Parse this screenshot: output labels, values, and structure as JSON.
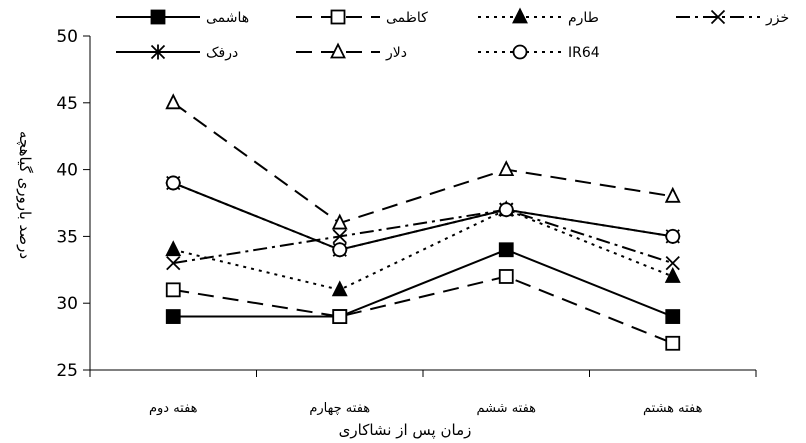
{
  "chart_data": {
    "type": "line",
    "xlabel": "زمان پس از نشاکاری",
    "ylabel": "درصد باروری گیاهچه",
    "categories": [
      "هفته دوم",
      "هفته چهارم",
      "هفته ششم",
      "هفته هشتم"
    ],
    "ylim": [
      25,
      50
    ],
    "yticks": [
      25,
      30,
      35,
      40,
      45,
      50
    ],
    "grid": false,
    "legend_position": "top",
    "series": [
      {
        "name": "هاشمی",
        "values": [
          29,
          29,
          34,
          29
        ],
        "marker": "square-filled",
        "dash": "solid"
      },
      {
        "name": "کاظمی",
        "values": [
          31,
          29,
          32,
          27
        ],
        "marker": "square-open",
        "dash": "long-dash"
      },
      {
        "name": "طارم",
        "values": [
          34,
          31,
          37,
          32
        ],
        "marker": "triangle-filled",
        "dash": "dotted"
      },
      {
        "name": "خزر",
        "values": [
          33,
          35,
          37,
          33
        ],
        "marker": "x",
        "dash": "dash-dot"
      },
      {
        "name": "درفک",
        "values": [
          39,
          34,
          37,
          35
        ],
        "marker": "star",
        "dash": "solid"
      },
      {
        "name": "دلار",
        "values": [
          45,
          36,
          40,
          38
        ],
        "marker": "triangle-open",
        "dash": "long-dash"
      },
      {
        "name": "IR64",
        "values": [
          39,
          34,
          37,
          35
        ],
        "marker": "circle-open",
        "dash": "dotted"
      }
    ]
  }
}
